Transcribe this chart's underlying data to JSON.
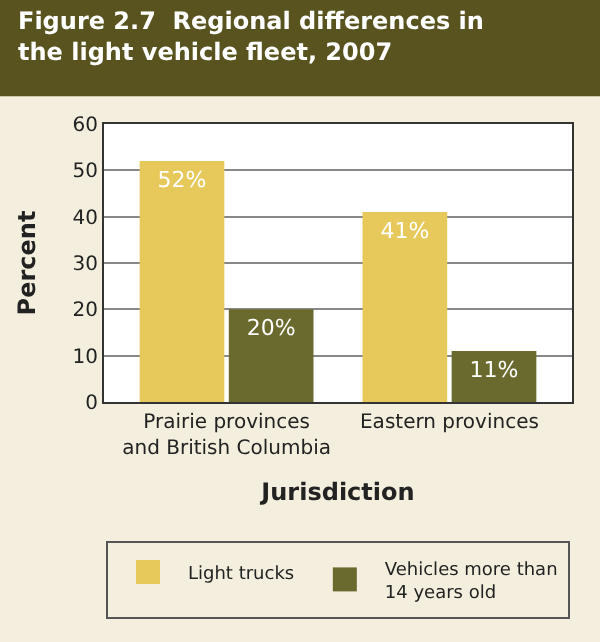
{
  "chart_data": {
    "type": "bar",
    "title": "Figure 2.7  Regional differences in the light vehicle fleet, 2007",
    "categories": [
      "Prairie provinces and British Columbia",
      "Eastern provinces"
    ],
    "series": [
      {
        "name": "Light trucks",
        "color": "#e6c95a",
        "values": [
          52,
          41
        ],
        "value_labels": [
          "52%",
          "41%"
        ]
      },
      {
        "name": "Vehicles more than 14 years old",
        "color": "#6b6a2e",
        "values": [
          20,
          11
        ],
        "value_labels": [
          "20%",
          "11%"
        ]
      }
    ],
    "xlabel": "Jurisdiction",
    "ylabel": "Percent",
    "ylim": [
      0,
      60
    ],
    "yticks": [
      0,
      10,
      20,
      30,
      40,
      50,
      60
    ],
    "grid": "y",
    "legend": "bottom"
  }
}
